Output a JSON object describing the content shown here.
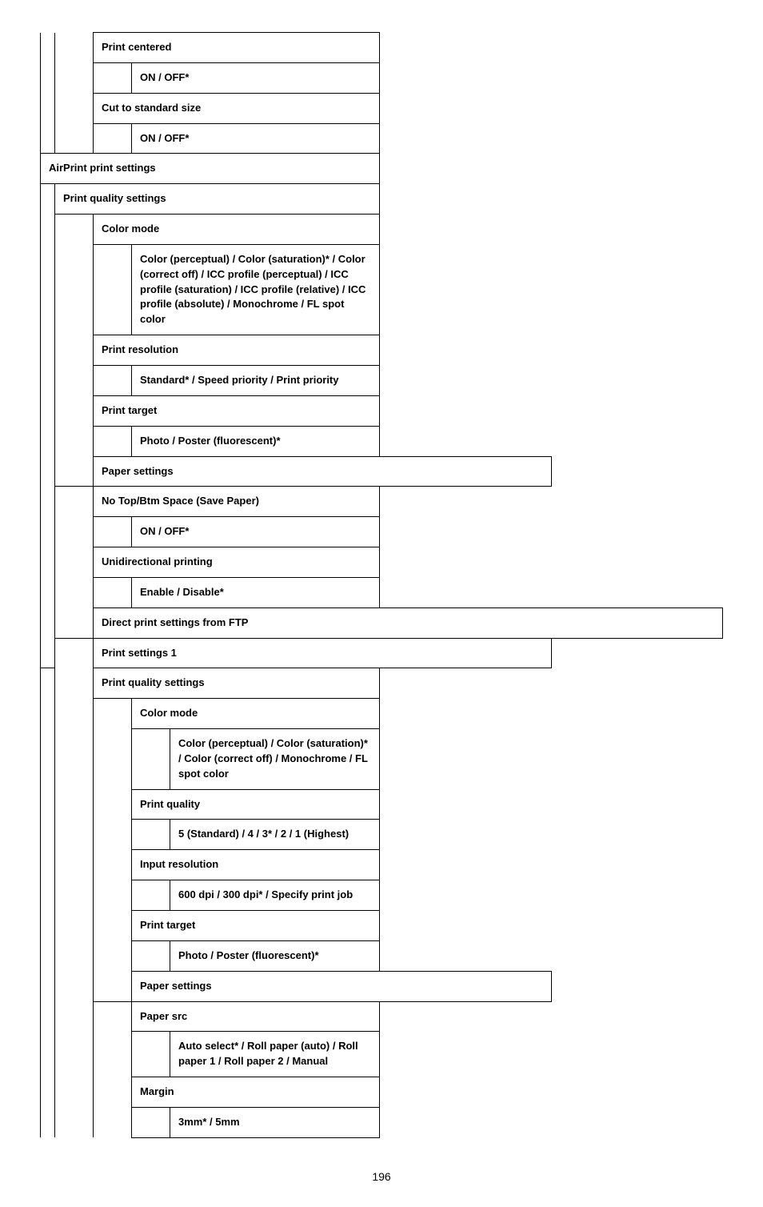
{
  "print_centered": {
    "title": "Print centered",
    "value": "ON / OFF*"
  },
  "cut_to_std": {
    "title": "Cut to standard size",
    "value": "ON / OFF*"
  },
  "airprint": {
    "title": "AirPrint print settings",
    "pqs": {
      "title": "Print quality settings",
      "color_mode": {
        "title": "Color mode",
        "value": "Color (perceptual) / Color (saturation)* / Color (correct off) / ICC profile (perceptual) / ICC profile (saturation) / ICC profile (relative) / ICC profile (absolute) / Monochrome / FL spot color"
      },
      "print_resolution": {
        "title": "Print resolution",
        "value": "Standard* / Speed priority / Print priority"
      },
      "print_target": {
        "title": "Print target",
        "value": "Photo / Poster (fluorescent)*"
      }
    },
    "paper": {
      "title": "Paper settings",
      "no_top_btm": {
        "title": "No Top/Btm Space (Save Paper)",
        "value": "ON / OFF*"
      },
      "unidir": {
        "title": "Unidirectional printing",
        "value": "Enable / Disable*"
      }
    }
  },
  "ftp": {
    "title": "Direct print settings from FTP",
    "ps1": {
      "title": "Print settings 1",
      "pqs": {
        "title": "Print quality settings",
        "color_mode": {
          "title": "Color mode",
          "value": "Color (perceptual) / Color (saturation)* / Color (correct off) / Monochrome / FL spot color"
        },
        "print_quality": {
          "title": "Print quality",
          "value": "5 (Standard) / 4 / 3* / 2 / 1 (Highest)"
        },
        "input_res": {
          "title": "Input resolution",
          "value": "600 dpi / 300 dpi* / Specify print job"
        },
        "print_target": {
          "title": "Print target",
          "value": "Photo / Poster (fluorescent)*"
        }
      },
      "paper": {
        "title": "Paper settings",
        "paper_src": {
          "title": "Paper src",
          "value": "Auto select* / Roll paper (auto) / Roll paper 1 / Roll paper 2 / Manual"
        },
        "margin": {
          "title": "Margin",
          "value": "3mm* / 5mm"
        }
      }
    }
  },
  "page_number": "196"
}
